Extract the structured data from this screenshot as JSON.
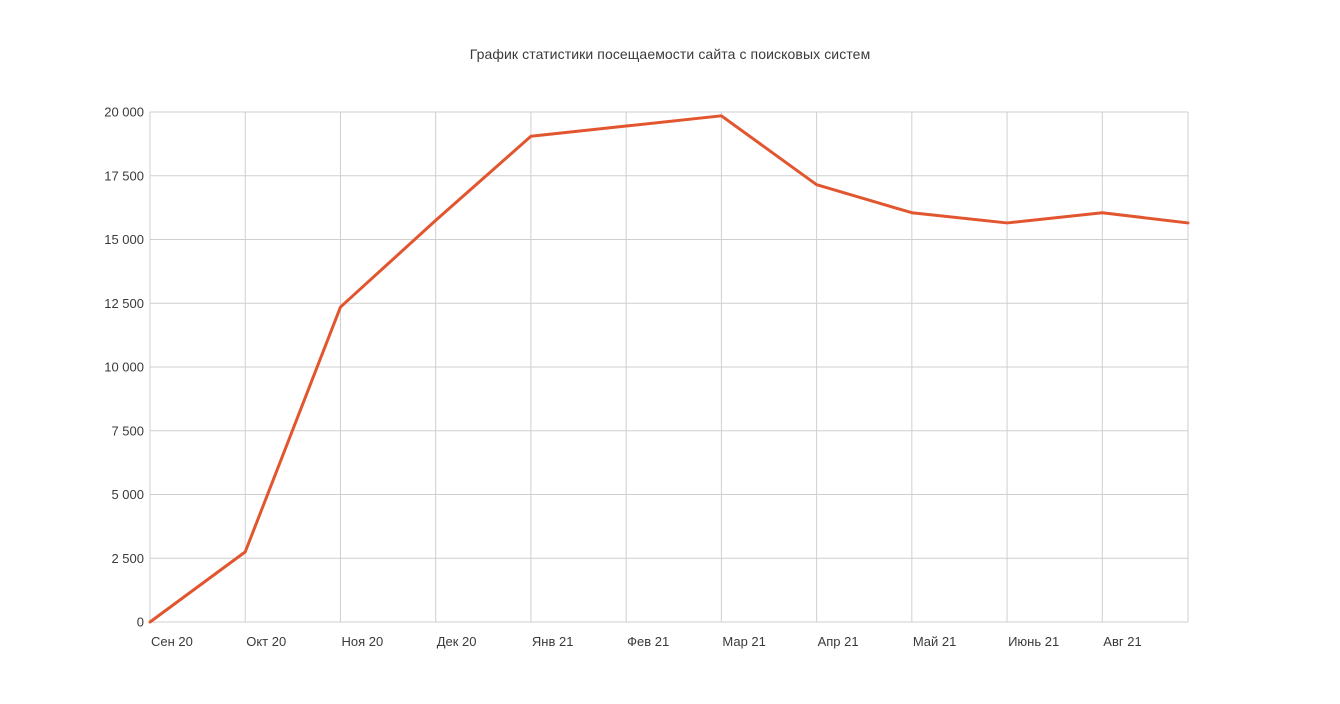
{
  "chart_data": {
    "type": "line",
    "title": "График статистики посещаемости сайта с поисковых систем",
    "xlabel": "",
    "ylabel": "",
    "categories": [
      "Сен 20",
      "Окт 20",
      "Ноя 20",
      "Дек 20",
      "Янв 21",
      "Фев 21",
      "Мар 21",
      "Апр 21",
      "Май 21",
      "Июнь 21",
      "Авг 21",
      ""
    ],
    "y_tick_labels": [
      "0",
      "2 500",
      "5 000",
      "7 500",
      "10 000",
      "12 500",
      "15 000",
      "17 500",
      "20 000"
    ],
    "y_tick_values": [
      0,
      2500,
      5000,
      7500,
      10000,
      12500,
      15000,
      17500,
      20000
    ],
    "ylim": [
      0,
      20000
    ],
    "grid": true,
    "series": [
      {
        "values": [
          0,
          2750,
          12350,
          15750,
          19050,
          19450,
          19850,
          17150,
          16050,
          15650,
          16050,
          15650
        ],
        "color": "#e2562f"
      }
    ]
  }
}
